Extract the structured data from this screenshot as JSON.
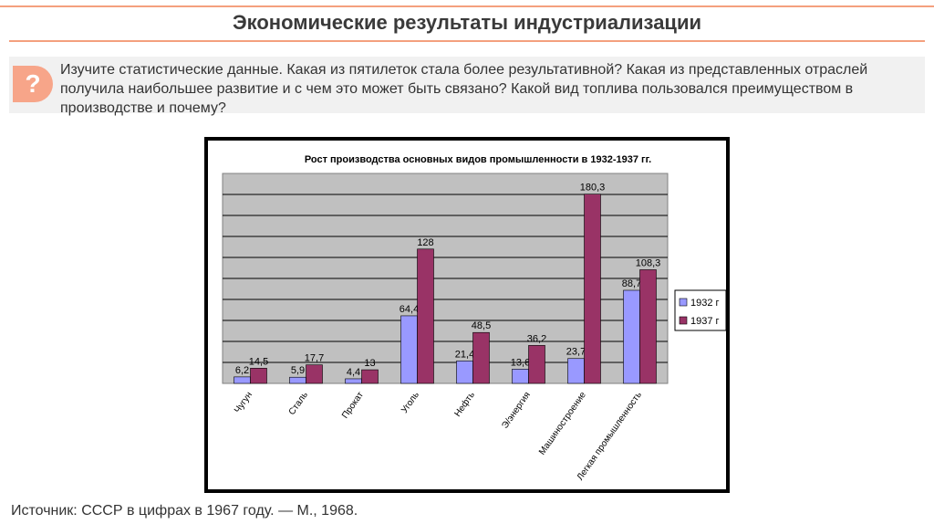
{
  "header": {
    "title": "Экономические результаты индустриализации"
  },
  "question": {
    "icon": "question-mark-icon",
    "icon_glyph": "?",
    "text": "Изучите статистические данные. Какая из пятилеток стала более результативной? Какая из представленных отраслей получила наибольшее развитие и с чем это может быть связано? Какой вид топлива пользовался преимуществом в производстве  и почему?"
  },
  "chart_data": {
    "type": "bar",
    "title": "Рост производства основных видов промышленности в 1932-1937 гг.",
    "categories": [
      "Чугун",
      "Сталь",
      "Прокат",
      "Уголь",
      "Нефть",
      "Э/энергия",
      "Машиностроение",
      "Легкая промышленность"
    ],
    "series": [
      {
        "name": "1932 г",
        "color": "#9999ff",
        "values": [
          6.2,
          5.9,
          4.4,
          64.4,
          21.4,
          13.6,
          23.7,
          88.7
        ],
        "labels": [
          "6,2",
          "5,9",
          "4,4",
          "64,4",
          "21,4",
          "13,6",
          "23,7",
          "88,7"
        ]
      },
      {
        "name": "1937 г",
        "color": "#993366",
        "values": [
          14.5,
          17.7,
          13,
          128,
          48.5,
          36.2,
          180.3,
          108.3
        ],
        "labels": [
          "14,5",
          "17,7",
          "13",
          "128",
          "48,5",
          "36,2",
          "180,3",
          "108,3"
        ]
      }
    ],
    "ylim": [
      0,
      200
    ],
    "grid": true,
    "legend": "right",
    "plot_background": "#c0c0c0"
  },
  "source": {
    "text": "Источник: СССР в цифрах в 1967 году. — М., 1968."
  }
}
